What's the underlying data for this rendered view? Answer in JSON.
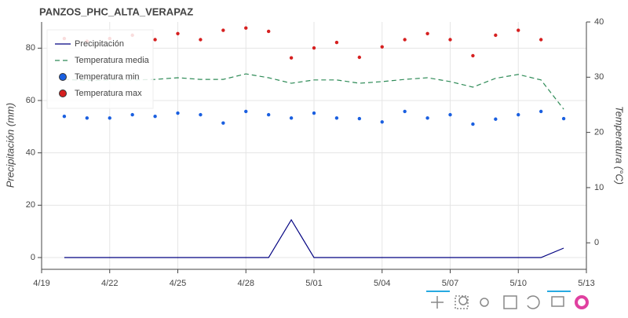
{
  "chart_data": {
    "type": "line",
    "title": "PANZOS_PHC_ALTA_VERAPAZ",
    "ylabel": "Precipitación (mm)",
    "y2label": "Temperatura (°C)",
    "x": [
      "4/20",
      "4/21",
      "4/22",
      "4/23",
      "4/24",
      "4/25",
      "4/26",
      "4/27",
      "4/28",
      "4/29",
      "4/30",
      "5/01",
      "5/02",
      "5/03",
      "5/04",
      "5/05",
      "5/06",
      "5/07",
      "5/08",
      "5/09",
      "5/10",
      "5/11",
      "5/12"
    ],
    "xlim": [
      "4/19",
      "5/13"
    ],
    "xticks": [
      "4/19",
      "4/22",
      "4/25",
      "4/28",
      "5/01",
      "5/04",
      "5/07",
      "5/10",
      "5/13"
    ],
    "ylim": [
      -4.5,
      90
    ],
    "yticks": [
      0,
      20,
      40,
      60,
      80
    ],
    "y2lim": [
      -4.8,
      40
    ],
    "y2ticks": [
      0,
      10,
      20,
      30,
      40
    ],
    "grid": true,
    "legend": "top-left",
    "series": [
      {
        "name": "Precipitación",
        "kind": "line",
        "color": "#000080",
        "values": [
          0,
          0,
          0,
          0,
          0,
          0,
          0,
          0,
          0,
          0,
          14.4,
          0,
          0,
          0,
          0,
          0,
          0,
          0,
          0,
          0,
          0,
          0,
          3.6
        ]
      },
      {
        "name": "Temperatura media",
        "kind": "dashed",
        "axis": "y2",
        "color": "#2e8b57",
        "values": [
          29.6,
          29.4,
          29.5,
          29.5,
          29.6,
          29.9,
          29.6,
          29.6,
          30.6,
          29.9,
          28.9,
          29.5,
          29.5,
          28.9,
          29.2,
          29.6,
          29.9,
          29.2,
          28.2,
          29.8,
          30.5,
          29.5,
          24.2
        ]
      },
      {
        "name": "Temperatura min",
        "kind": "dots",
        "axis": "y2",
        "color": "#1a5fe0",
        "values": [
          22.9,
          22.6,
          22.6,
          23.2,
          22.9,
          23.5,
          23.2,
          21.7,
          23.8,
          23.2,
          22.6,
          23.5,
          22.6,
          22.5,
          21.9,
          23.8,
          22.6,
          23.2,
          21.5,
          22.4,
          23.2,
          23.8,
          22.5
        ]
      },
      {
        "name": "Temperatura max",
        "kind": "dots",
        "axis": "y2",
        "color": "#d62020",
        "values": [
          37.0,
          36.5,
          37.0,
          37.6,
          36.8,
          37.9,
          36.8,
          38.5,
          38.9,
          38.3,
          33.5,
          35.3,
          36.3,
          33.6,
          35.5,
          36.8,
          37.9,
          36.8,
          33.9,
          37.6,
          38.5,
          36.8,
          null
        ]
      }
    ]
  }
}
